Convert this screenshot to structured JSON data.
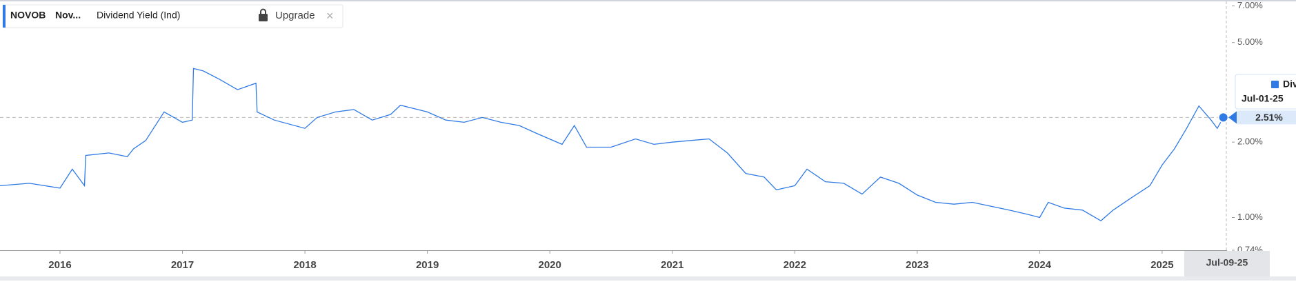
{
  "header": {
    "ticker": "NOVOB",
    "name": "Nov...",
    "action": "Upgrade",
    "close": "×"
  },
  "chart_data": {
    "type": "line",
    "log_scale": true,
    "series": [
      {
        "name": "Dividend Yield (Ind)",
        "color": "#2f7ae5",
        "x": [
          2015.51,
          2015.75,
          2016.0,
          2016.1,
          2016.2,
          2016.21,
          2016.4,
          2016.55,
          2016.6,
          2016.7,
          2016.85,
          2017.0,
          2017.08,
          2017.09,
          2017.17,
          2017.3,
          2017.45,
          2017.6,
          2017.61,
          2017.75,
          2018.0,
          2018.1,
          2018.25,
          2018.4,
          2018.55,
          2018.7,
          2018.78,
          2019.0,
          2019.15,
          2019.3,
          2019.45,
          2019.6,
          2019.75,
          2019.9,
          2020.1,
          2020.2,
          2020.3,
          2020.5,
          2020.7,
          2020.85,
          2021.0,
          2021.15,
          2021.3,
          2021.45,
          2021.6,
          2021.75,
          2021.85,
          2022.0,
          2022.1,
          2022.25,
          2022.4,
          2022.55,
          2022.7,
          2022.85,
          2023.0,
          2023.15,
          2023.3,
          2023.45,
          2023.6,
          2023.75,
          2023.9,
          2024.0,
          2024.07,
          2024.2,
          2024.35,
          2024.5,
          2024.6,
          2024.75,
          2024.9,
          2025.0,
          2025.1,
          2025.2,
          2025.3,
          2025.4,
          2025.45,
          2025.5
        ],
        "values": [
          1.34,
          1.37,
          1.31,
          1.56,
          1.34,
          1.77,
          1.81,
          1.75,
          1.88,
          2.03,
          2.64,
          2.4,
          2.45,
          3.94,
          3.85,
          3.57,
          3.24,
          3.44,
          2.64,
          2.45,
          2.27,
          2.51,
          2.64,
          2.7,
          2.45,
          2.58,
          2.81,
          2.64,
          2.45,
          2.4,
          2.51,
          2.4,
          2.33,
          2.16,
          1.96,
          2.33,
          1.91,
          1.91,
          2.06,
          1.96,
          2.0,
          2.03,
          2.06,
          1.81,
          1.5,
          1.45,
          1.29,
          1.34,
          1.56,
          1.39,
          1.37,
          1.24,
          1.45,
          1.37,
          1.23,
          1.15,
          1.13,
          1.15,
          1.11,
          1.07,
          1.03,
          1.0,
          1.15,
          1.09,
          1.07,
          0.97,
          1.07,
          1.2,
          1.34,
          1.62,
          1.88,
          2.27,
          2.79,
          2.45,
          2.27,
          2.51
        ]
      }
    ],
    "xlim": [
      2015.51,
      2025.53
    ],
    "xticks": [
      2016,
      2017,
      2018,
      2019,
      2020,
      2021,
      2022,
      2023,
      2024,
      2025
    ],
    "ylim": [
      0.74,
      7.3
    ],
    "yticks": [
      {
        "value": 0.74,
        "label": "0.74%"
      },
      {
        "value": 1,
        "label": "1.00%"
      },
      {
        "value": 2,
        "label": "2.00%"
      },
      {
        "value": 5,
        "label": "5.00%"
      },
      {
        "value": 7,
        "label": "7.00%"
      }
    ],
    "tooltip": {
      "label": "Div",
      "date": "Jul-01-25",
      "value": 2.51,
      "value_label": "2.51%"
    },
    "cursor_date_label": "Jul-09-25"
  }
}
